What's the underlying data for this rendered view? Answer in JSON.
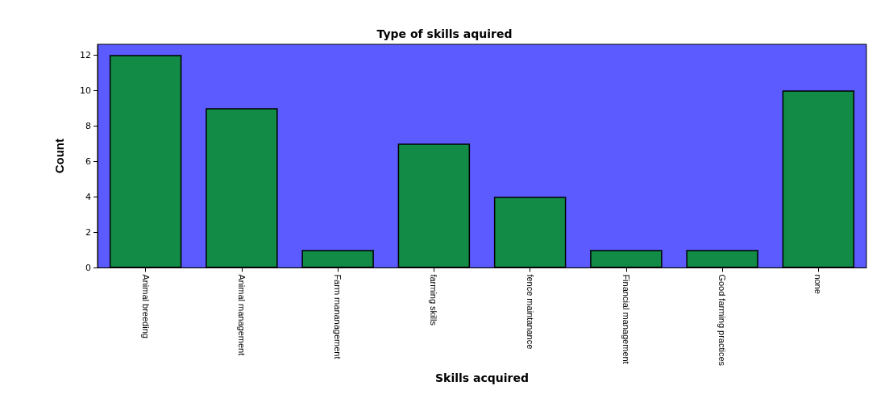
{
  "chart_data": {
    "type": "bar",
    "title": "Type of skills aquired",
    "xlabel": "Skills acquired",
    "ylabel": "Count",
    "categories": [
      "Animal breeding",
      "Animal management",
      "Farm mananagement",
      "farming skills",
      "fence maintanance",
      "Financial management",
      "Good farming practices",
      "none"
    ],
    "values": [
      12,
      9,
      1,
      7,
      4,
      1,
      1,
      10
    ],
    "color": "#118b46",
    "ylim": [
      0,
      12.6
    ],
    "yticks": [
      0,
      2,
      4,
      6,
      8,
      10,
      12
    ],
    "grid": false
  }
}
